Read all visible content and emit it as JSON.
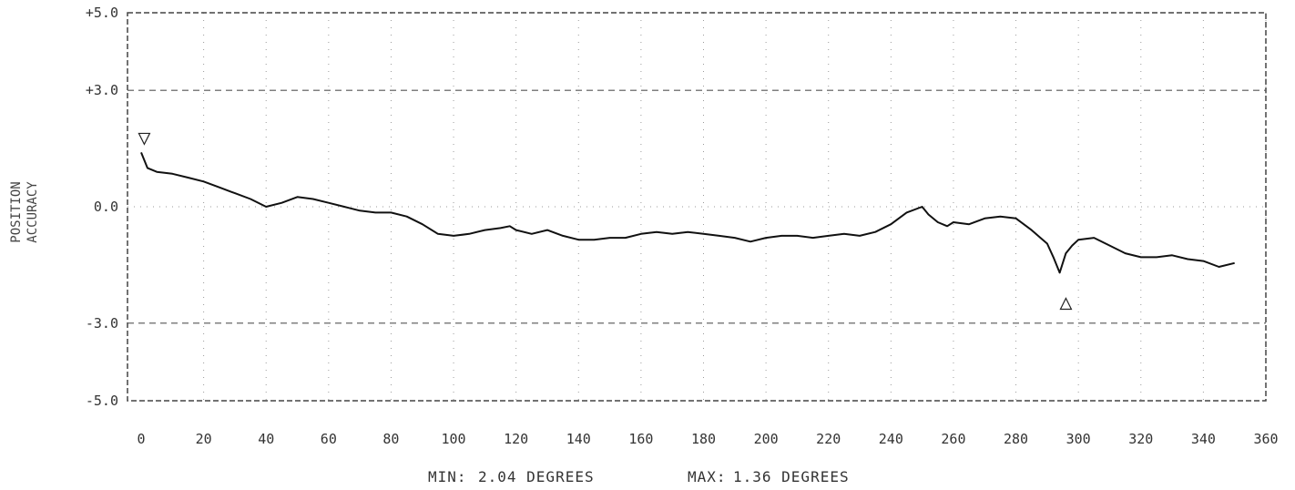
{
  "chart_data": {
    "type": "line",
    "ylabel": [
      "POSITION",
      "ACCURACY"
    ],
    "xlim": [
      0,
      360
    ],
    "ylim": [
      -5.0,
      5.0
    ],
    "x_ticks": [
      0,
      20,
      40,
      60,
      80,
      100,
      120,
      140,
      160,
      180,
      200,
      220,
      240,
      260,
      280,
      300,
      320,
      340,
      360
    ],
    "x_tick_labels": [
      "0",
      "20",
      "40",
      "60",
      "80",
      "100",
      "120",
      "140",
      "160",
      "180",
      "200",
      "220",
      "240",
      "260",
      "280",
      "300",
      "320",
      "340",
      "360"
    ],
    "y_ticks": [
      5.0,
      3.0,
      0.0,
      -3.0,
      -5.0
    ],
    "y_tick_labels": [
      "+5.0",
      "+3.0",
      "0.0",
      "-3.0",
      "-5.0"
    ],
    "limit_lines": [
      3.0,
      -3.0
    ],
    "grid": true,
    "series": [
      {
        "x": [
          0,
          2,
          5,
          10,
          15,
          20,
          25,
          30,
          35,
          40,
          45,
          50,
          55,
          60,
          65,
          70,
          75,
          80,
          85,
          90,
          95,
          100,
          105,
          110,
          115,
          118,
          120,
          125,
          130,
          135,
          140,
          145,
          150,
          155,
          160,
          165,
          170,
          175,
          180,
          185,
          190,
          195,
          200,
          205,
          210,
          215,
          220,
          225,
          230,
          235,
          240,
          245,
          250,
          252,
          255,
          258,
          260,
          265,
          270,
          275,
          280,
          285,
          290,
          292,
          294,
          296,
          298,
          300,
          305,
          310,
          315,
          320,
          325,
          330,
          335,
          340,
          345,
          350
        ],
        "y": [
          1.4,
          1.0,
          0.9,
          0.85,
          0.75,
          0.65,
          0.5,
          0.35,
          0.2,
          0.0,
          0.1,
          0.25,
          0.2,
          0.1,
          0.0,
          -0.1,
          -0.15,
          -0.15,
          -0.25,
          -0.45,
          -0.7,
          -0.75,
          -0.7,
          -0.6,
          -0.55,
          -0.5,
          -0.6,
          -0.7,
          -0.6,
          -0.75,
          -0.85,
          -0.85,
          -0.8,
          -0.8,
          -0.7,
          -0.65,
          -0.7,
          -0.65,
          -0.7,
          -0.75,
          -0.8,
          -0.9,
          -0.8,
          -0.75,
          -0.75,
          -0.8,
          -0.75,
          -0.7,
          -0.75,
          -0.65,
          -0.45,
          -0.15,
          0.0,
          -0.2,
          -0.4,
          -0.5,
          -0.4,
          -0.45,
          -0.3,
          -0.25,
          -0.3,
          -0.6,
          -0.95,
          -1.3,
          -1.7,
          -1.2,
          -1.0,
          -0.85,
          -0.8,
          -1.0,
          -1.2,
          -1.3,
          -1.3,
          -1.25,
          -1.35,
          -1.4,
          -1.55,
          -1.45
        ]
      }
    ],
    "markers": [
      {
        "x": 1,
        "y": 1.75,
        "shape": "triangle-down"
      },
      {
        "x": 296,
        "y": -2.5,
        "shape": "triangle-up"
      }
    ]
  },
  "stats": {
    "min_label": "MIN:",
    "min_value": "2.04 DEGREES",
    "max_label": "MAX:",
    "max_value": "1.36 DEGREES"
  },
  "colors": {
    "trace": "#111111",
    "grid": "#9a9a9a",
    "frame": "#444444"
  }
}
